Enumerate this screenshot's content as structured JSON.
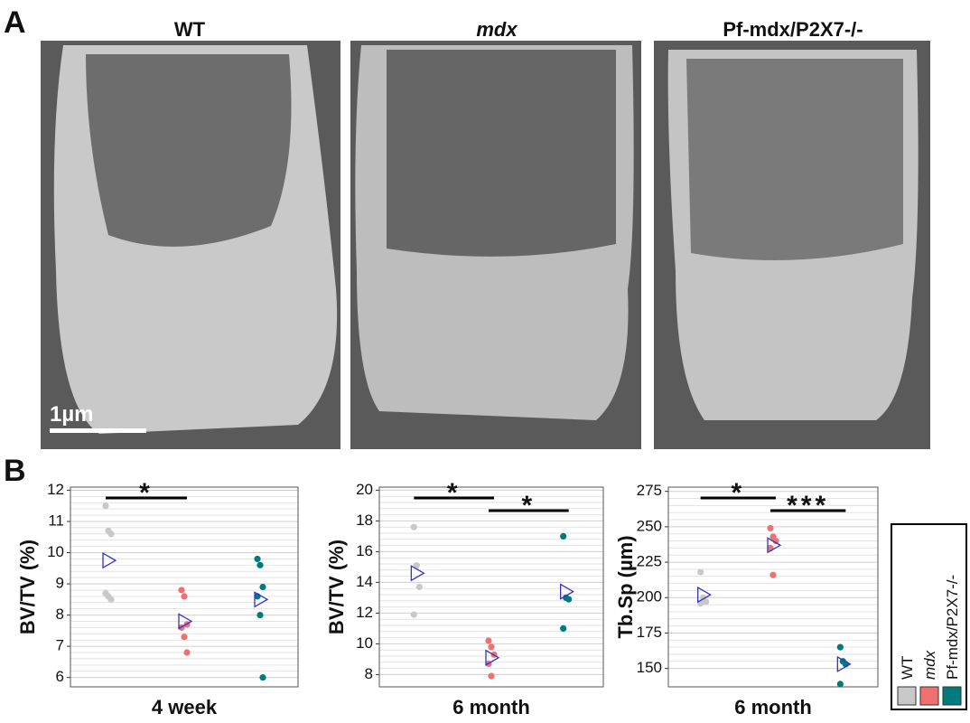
{
  "figure": {
    "panel_a": "A",
    "panel_b": "B",
    "image_titles": [
      "WT",
      "mdx",
      "Pf-mdx/P2X7-/-"
    ],
    "scale_bar": "1µm"
  },
  "chart_data": [
    {
      "type": "strip",
      "ylabel": "BV/TV (%)",
      "xlabel": "4 week",
      "ylim": [
        5.7,
        12.1
      ],
      "yticks": [
        6,
        7,
        8,
        9,
        10,
        11,
        12
      ],
      "grid": true,
      "series": [
        {
          "name": "WT",
          "color": "#c8c8c8",
          "values": [
            11.5,
            10.7,
            10.6,
            8.7,
            8.6,
            8.5
          ],
          "mean": 9.75
        },
        {
          "name": "mdx",
          "color": "#f07070",
          "values": [
            8.8,
            8.6,
            7.7,
            7.6,
            7.3,
            6.8
          ],
          "mean": 7.8
        },
        {
          "name": "Pf-mdx/P2X7-/-",
          "color": "#007b7b",
          "values": [
            9.8,
            9.6,
            8.9,
            8.6,
            8.0,
            6.0
          ],
          "mean": 8.5
        }
      ],
      "annotations": [
        {
          "text": "*",
          "between": [
            "WT",
            "mdx"
          ]
        }
      ]
    },
    {
      "type": "strip",
      "ylabel": "BV/TV (%)",
      "xlabel": "6 month",
      "ylim": [
        7.2,
        20.2
      ],
      "yticks": [
        8,
        10,
        12,
        14,
        16,
        18,
        20
      ],
      "grid": true,
      "series": [
        {
          "name": "WT",
          "color": "#c8c8c8",
          "values": [
            17.6,
            15.1,
            13.7,
            11.9
          ],
          "mean": 14.6
        },
        {
          "name": "mdx",
          "color": "#f07070",
          "values": [
            10.2,
            9.8,
            9.3,
            8.7,
            7.9
          ],
          "mean": 9.1
        },
        {
          "name": "Pf-mdx/P2X7-/-",
          "color": "#007b7b",
          "values": [
            17.0,
            13.0,
            12.9,
            11.0
          ],
          "mean": 13.4
        }
      ],
      "annotations": [
        {
          "text": "*",
          "between": [
            "WT",
            "mdx"
          ]
        },
        {
          "text": "*",
          "between": [
            "mdx",
            "Pf-mdx/P2X7-/-"
          ]
        }
      ]
    },
    {
      "type": "strip",
      "ylabel": "Tb.Sp (µm)",
      "xlabel": "6 month",
      "ylim": [
        137,
        278
      ],
      "yticks": [
        150,
        175,
        200,
        225,
        250,
        275
      ],
      "grid": true,
      "series": [
        {
          "name": "WT",
          "color": "#c8c8c8",
          "values": [
            218,
            200,
            197,
            196
          ],
          "mean": 202
        },
        {
          "name": "mdx",
          "color": "#f07070",
          "values": [
            249,
            243,
            240,
            235,
            216
          ],
          "mean": 237
        },
        {
          "name": "Pf-mdx/P2X7-/-",
          "color": "#007b7b",
          "values": [
            165,
            155,
            153,
            139
          ],
          "mean": 153
        }
      ],
      "annotations": [
        {
          "text": "*",
          "between": [
            "WT",
            "mdx"
          ]
        },
        {
          "text": "***",
          "between": [
            "mdx",
            "Pf-mdx/P2X7-/-"
          ]
        }
      ]
    }
  ]
}
